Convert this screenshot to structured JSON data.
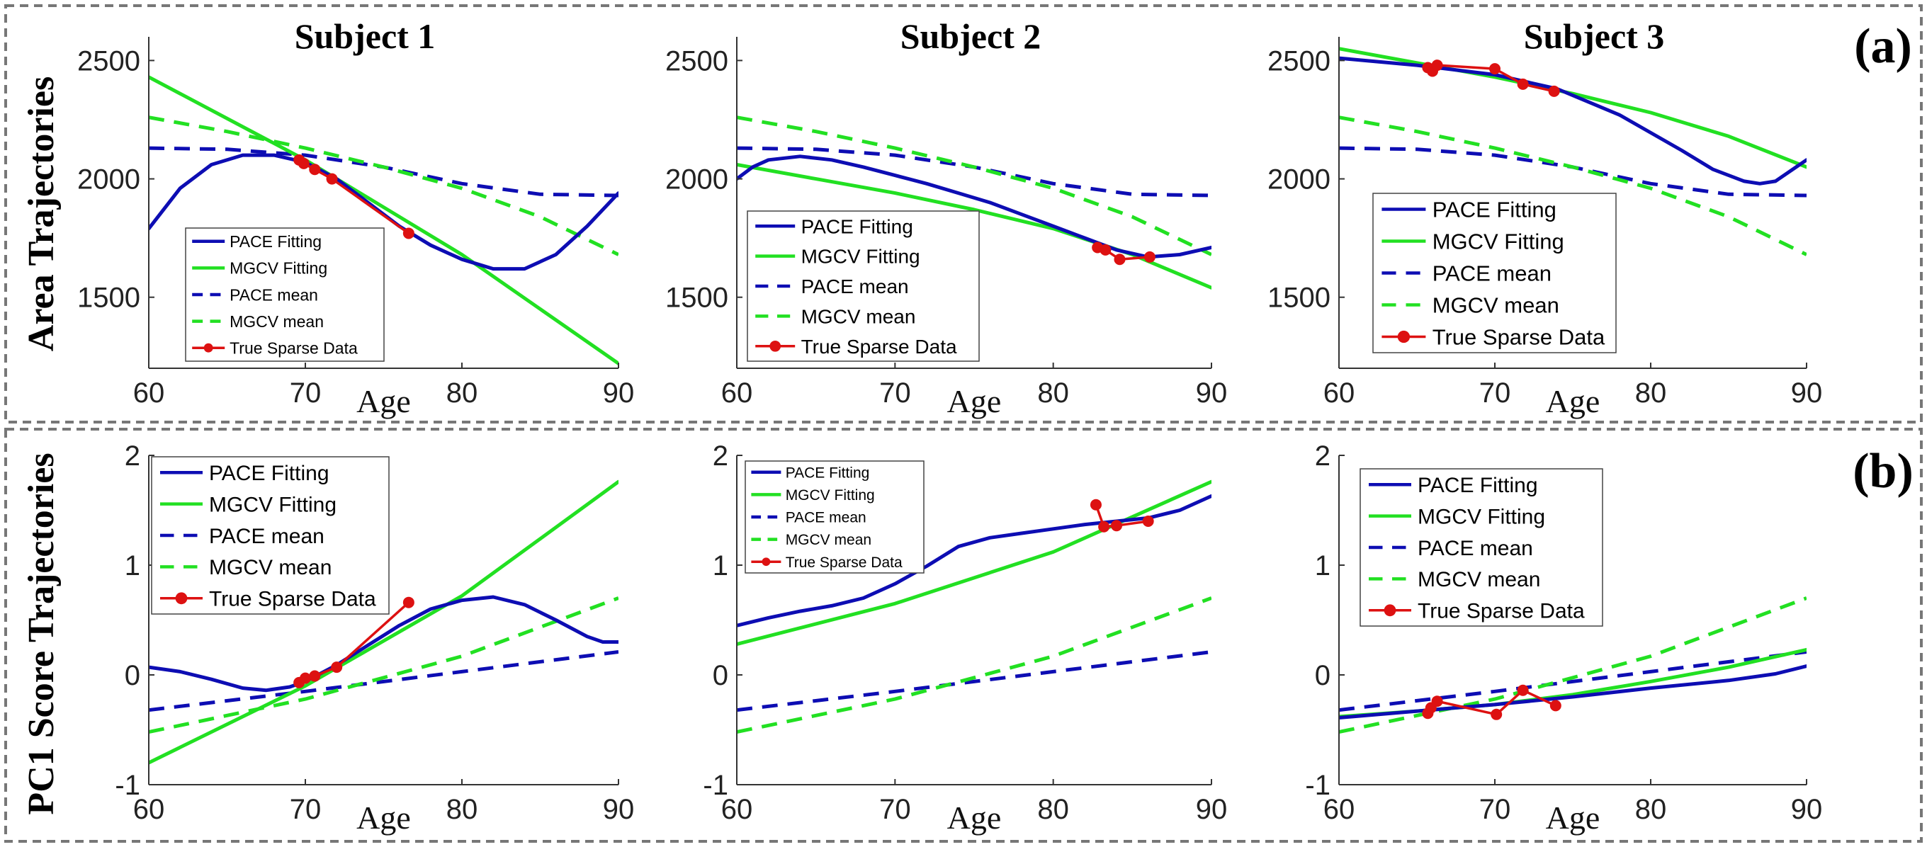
{
  "figure": {
    "rows": [
      {
        "label": "Area Trajectories",
        "panel_tag": "(a)"
      },
      {
        "label": "PC1 Score Trajectories",
        "panel_tag": "(b)"
      }
    ],
    "column_titles": [
      "Subject 1",
      "Subject 2",
      "Subject 3"
    ],
    "colors": {
      "pace": "#0d0db3",
      "mgcv": "#22e022",
      "data": "#dd1111"
    }
  },
  "chart_data": [
    {
      "type": "line",
      "row": 0,
      "col": 0,
      "title": "Subject 1",
      "xlabel": "Age",
      "ylabel": "",
      "xlim": [
        60,
        90
      ],
      "ylim": [
        1200,
        2600
      ],
      "xticks": [
        60,
        70,
        80,
        90
      ],
      "yticks": [
        1500,
        2000,
        2500
      ],
      "grid": false,
      "legend": {
        "position": "bottom-left"
      },
      "series": [
        {
          "name": "PACE Fitting",
          "style": "solid",
          "color": "#0d0db3",
          "x": [
            60,
            62,
            64,
            66,
            68,
            70,
            72,
            74,
            76,
            78,
            80,
            82,
            84,
            86,
            88,
            90
          ],
          "y": [
            1790,
            1960,
            2060,
            2100,
            2100,
            2070,
            2000,
            1900,
            1800,
            1720,
            1660,
            1620,
            1620,
            1680,
            1800,
            1940
          ]
        },
        {
          "name": "MGCV Fitting",
          "style": "solid",
          "color": "#22e022",
          "x": [
            60,
            70,
            80,
            90
          ],
          "y": [
            2430,
            2080,
            1680,
            1220
          ]
        },
        {
          "name": "PACE mean",
          "style": "dashed",
          "color": "#0d0db3",
          "x": [
            60,
            65,
            70,
            75,
            80,
            85,
            90
          ],
          "y": [
            2130,
            2125,
            2100,
            2050,
            1980,
            1935,
            1930
          ]
        },
        {
          "name": "MGCV mean",
          "style": "dashed",
          "color": "#22e022",
          "x": [
            60,
            65,
            70,
            75,
            80,
            85,
            90
          ],
          "y": [
            2260,
            2200,
            2130,
            2050,
            1960,
            1840,
            1680
          ]
        },
        {
          "name": "True Sparse Data",
          "style": "markers",
          "color": "#dd1111",
          "x": [
            69.6,
            69.9,
            70.6,
            71.7,
            76.6
          ],
          "y": [
            2080,
            2065,
            2040,
            2000,
            1770
          ]
        }
      ]
    },
    {
      "type": "line",
      "row": 0,
      "col": 1,
      "title": "Subject 2",
      "xlabel": "Age",
      "ylabel": "",
      "xlim": [
        60,
        90
      ],
      "ylim": [
        1200,
        2600
      ],
      "xticks": [
        60,
        70,
        80,
        90
      ],
      "yticks": [
        1500,
        2000,
        2500
      ],
      "grid": false,
      "legend": {
        "position": "bottom-left"
      },
      "series": [
        {
          "name": "PACE Fitting",
          "style": "solid",
          "color": "#0d0db3",
          "x": [
            60,
            61,
            62,
            64,
            66,
            68,
            70,
            72,
            74,
            76,
            78,
            80,
            82,
            84,
            86,
            88,
            90
          ],
          "y": [
            2000,
            2050,
            2080,
            2095,
            2080,
            2050,
            2015,
            1980,
            1940,
            1900,
            1850,
            1800,
            1750,
            1700,
            1670,
            1680,
            1710
          ]
        },
        {
          "name": "MGCV Fitting",
          "style": "solid",
          "color": "#22e022",
          "x": [
            60,
            65,
            70,
            75,
            80,
            85,
            90
          ],
          "y": [
            2060,
            2000,
            1940,
            1870,
            1790,
            1680,
            1540
          ]
        },
        {
          "name": "PACE mean",
          "style": "dashed",
          "color": "#0d0db3",
          "x": [
            60,
            65,
            70,
            75,
            80,
            85,
            90
          ],
          "y": [
            2130,
            2125,
            2100,
            2050,
            1980,
            1935,
            1930
          ]
        },
        {
          "name": "MGCV mean",
          "style": "dashed",
          "color": "#22e022",
          "x": [
            60,
            65,
            70,
            75,
            80,
            85,
            90
          ],
          "y": [
            2260,
            2200,
            2130,
            2050,
            1960,
            1840,
            1680
          ]
        },
        {
          "name": "True Sparse Data",
          "style": "markers",
          "color": "#dd1111",
          "x": [
            82.8,
            83.3,
            84.2,
            86.1
          ],
          "y": [
            1710,
            1700,
            1660,
            1670
          ]
        }
      ]
    },
    {
      "type": "line",
      "row": 0,
      "col": 2,
      "title": "Subject 3",
      "xlabel": "Age",
      "ylabel": "",
      "xlim": [
        60,
        90
      ],
      "ylim": [
        1200,
        2600
      ],
      "xticks": [
        60,
        70,
        80,
        90
      ],
      "yticks": [
        1500,
        2000,
        2500
      ],
      "grid": false,
      "legend": {
        "position": "bottom-left"
      },
      "series": [
        {
          "name": "PACE Fitting",
          "style": "solid",
          "color": "#0d0db3",
          "x": [
            60,
            65,
            70,
            74,
            78,
            82,
            84,
            86,
            87,
            88,
            90
          ],
          "y": [
            2510,
            2480,
            2440,
            2380,
            2270,
            2120,
            2040,
            1990,
            1980,
            1990,
            2080
          ]
        },
        {
          "name": "MGCV Fitting",
          "style": "solid",
          "color": "#22e022",
          "x": [
            60,
            65,
            70,
            75,
            80,
            85,
            90
          ],
          "y": [
            2550,
            2490,
            2430,
            2360,
            2280,
            2180,
            2050
          ]
        },
        {
          "name": "PACE mean",
          "style": "dashed",
          "color": "#0d0db3",
          "x": [
            60,
            65,
            70,
            75,
            80,
            85,
            90
          ],
          "y": [
            2130,
            2125,
            2100,
            2050,
            1980,
            1935,
            1930
          ]
        },
        {
          "name": "MGCV mean",
          "style": "dashed",
          "color": "#22e022",
          "x": [
            60,
            65,
            70,
            75,
            80,
            85,
            90
          ],
          "y": [
            2260,
            2200,
            2130,
            2050,
            1960,
            1840,
            1680
          ]
        },
        {
          "name": "True Sparse Data",
          "style": "markers",
          "color": "#dd1111",
          "x": [
            65.7,
            66.0,
            66.3,
            70.0,
            71.8,
            73.8
          ],
          "y": [
            2470,
            2455,
            2480,
            2465,
            2400,
            2370
          ]
        }
      ]
    },
    {
      "type": "line",
      "row": 1,
      "col": 0,
      "title": "",
      "xlabel": "Age",
      "ylabel": "",
      "xlim": [
        60,
        90
      ],
      "ylim": [
        -1,
        2
      ],
      "xticks": [
        60,
        70,
        80,
        90
      ],
      "yticks": [
        -1,
        0,
        1,
        2
      ],
      "grid": false,
      "legend": {
        "position": "top-left"
      },
      "series": [
        {
          "name": "PACE Fitting",
          "style": "solid",
          "color": "#0d0db3",
          "x": [
            60,
            62,
            64,
            66,
            67.5,
            69,
            70,
            72,
            74,
            76,
            78,
            80,
            82,
            84,
            86,
            88,
            89,
            90
          ],
          "y": [
            0.07,
            0.03,
            -0.04,
            -0.12,
            -0.14,
            -0.11,
            -0.06,
            0.09,
            0.27,
            0.45,
            0.6,
            0.68,
            0.71,
            0.64,
            0.5,
            0.35,
            0.3,
            0.3
          ]
        },
        {
          "name": "MGCV Fitting",
          "style": "solid",
          "color": "#22e022",
          "x": [
            60,
            70,
            80,
            90
          ],
          "y": [
            -0.8,
            -0.1,
            0.72,
            1.76
          ]
        },
        {
          "name": "PACE mean",
          "style": "dashed",
          "color": "#0d0db3",
          "x": [
            60,
            70,
            80,
            90
          ],
          "y": [
            -0.32,
            -0.15,
            0.03,
            0.21
          ]
        },
        {
          "name": "MGCV mean",
          "style": "dashed",
          "color": "#22e022",
          "x": [
            60,
            70,
            80,
            90
          ],
          "y": [
            -0.52,
            -0.22,
            0.17,
            0.7
          ]
        },
        {
          "name": "True Sparse Data",
          "style": "markers",
          "color": "#dd1111",
          "x": [
            69.6,
            70.0,
            70.6,
            72.0,
            76.6
          ],
          "y": [
            -0.07,
            -0.03,
            -0.01,
            0.07,
            0.66
          ]
        }
      ]
    },
    {
      "type": "line",
      "row": 1,
      "col": 1,
      "title": "",
      "xlabel": "Age",
      "ylabel": "",
      "xlim": [
        60,
        90
      ],
      "ylim": [
        -1,
        2
      ],
      "xticks": [
        60,
        70,
        80,
        90
      ],
      "yticks": [
        -1,
        0,
        1,
        2
      ],
      "grid": false,
      "legend": {
        "position": "top-left"
      },
      "series": [
        {
          "name": "PACE Fitting",
          "style": "solid",
          "color": "#0d0db3",
          "x": [
            60,
            62,
            64,
            66,
            68,
            70,
            72,
            74,
            76,
            78,
            80,
            82,
            84,
            86,
            88,
            90
          ],
          "y": [
            0.45,
            0.52,
            0.58,
            0.63,
            0.7,
            0.83,
            0.99,
            1.17,
            1.25,
            1.29,
            1.33,
            1.37,
            1.4,
            1.43,
            1.5,
            1.63
          ]
        },
        {
          "name": "MGCV Fitting",
          "style": "solid",
          "color": "#22e022",
          "x": [
            60,
            70,
            80,
            90
          ],
          "y": [
            0.28,
            0.65,
            1.12,
            1.76
          ]
        },
        {
          "name": "PACE mean",
          "style": "dashed",
          "color": "#0d0db3",
          "x": [
            60,
            70,
            80,
            90
          ],
          "y": [
            -0.32,
            -0.15,
            0.03,
            0.21
          ]
        },
        {
          "name": "MGCV mean",
          "style": "dashed",
          "color": "#22e022",
          "x": [
            60,
            70,
            80,
            90
          ],
          "y": [
            -0.52,
            -0.22,
            0.17,
            0.7
          ]
        },
        {
          "name": "True Sparse Data",
          "style": "markers",
          "color": "#dd1111",
          "x": [
            82.7,
            83.2,
            84.0,
            86.0
          ],
          "y": [
            1.55,
            1.35,
            1.36,
            1.4
          ]
        }
      ]
    },
    {
      "type": "line",
      "row": 1,
      "col": 2,
      "title": "",
      "xlabel": "Age",
      "ylabel": "",
      "xlim": [
        60,
        90
      ],
      "ylim": [
        -1,
        2
      ],
      "xticks": [
        60,
        70,
        80,
        90
      ],
      "yticks": [
        -1,
        0,
        1,
        2
      ],
      "grid": false,
      "legend": {
        "position": "top-left"
      },
      "series": [
        {
          "name": "PACE Fitting",
          "style": "solid",
          "color": "#0d0db3",
          "x": [
            60,
            65,
            70,
            75,
            80,
            85,
            88,
            90
          ],
          "y": [
            -0.39,
            -0.33,
            -0.27,
            -0.2,
            -0.12,
            -0.05,
            0.01,
            0.08
          ]
        },
        {
          "name": "MGCV Fitting",
          "style": "solid",
          "color": "#22e022",
          "x": [
            60,
            65,
            70,
            75,
            80,
            85,
            90
          ],
          "y": [
            -0.38,
            -0.33,
            -0.27,
            -0.18,
            -0.06,
            0.07,
            0.23
          ]
        },
        {
          "name": "PACE mean",
          "style": "dashed",
          "color": "#0d0db3",
          "x": [
            60,
            70,
            80,
            90
          ],
          "y": [
            -0.32,
            -0.15,
            0.03,
            0.21
          ]
        },
        {
          "name": "MGCV mean",
          "style": "dashed",
          "color": "#22e022",
          "x": [
            60,
            70,
            80,
            90
          ],
          "y": [
            -0.52,
            -0.22,
            0.17,
            0.7
          ]
        },
        {
          "name": "True Sparse Data",
          "style": "markers",
          "color": "#dd1111",
          "x": [
            65.7,
            65.9,
            66.3,
            70.1,
            71.8,
            73.9
          ],
          "y": [
            -0.35,
            -0.3,
            -0.24,
            -0.36,
            -0.14,
            -0.28
          ]
        }
      ]
    }
  ]
}
